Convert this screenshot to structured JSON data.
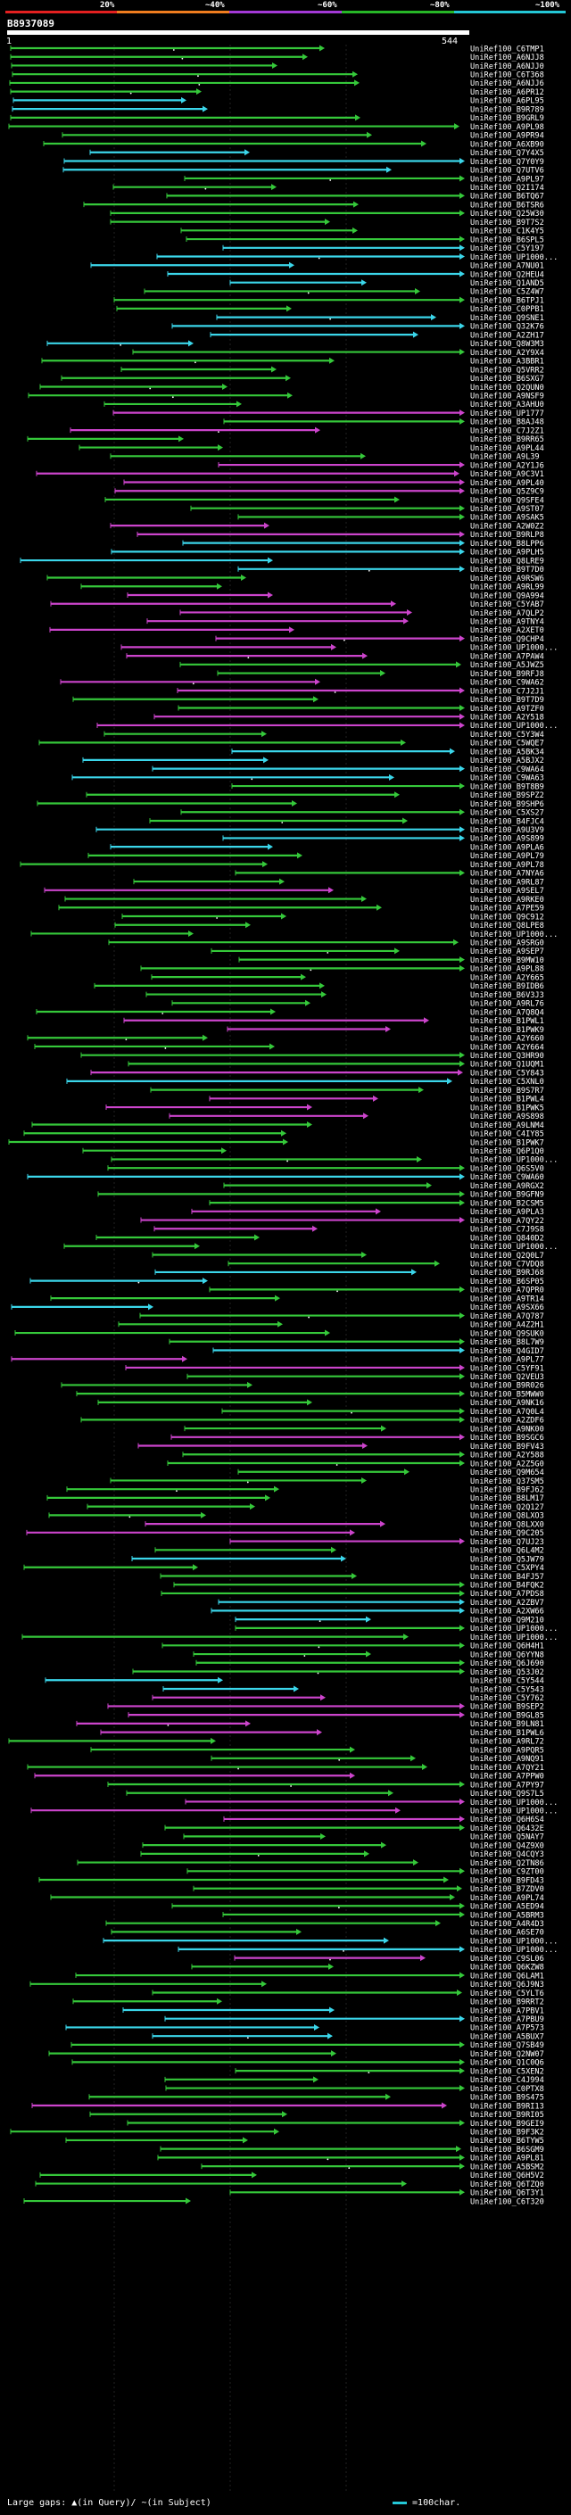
{
  "colors": {
    "red": "#e32020",
    "orange": "#f07d1f",
    "purple": "#a339d6",
    "green": "#27b627",
    "cyan": "#24c7d6",
    "magenta": "#cc44cc",
    "bright_green": "#35c83a",
    "sky": "#3bd6ea"
  },
  "legend": {
    "labels": [
      "20%",
      "~40%",
      "~60%",
      "~80%",
      "~100%"
    ]
  },
  "query": {
    "id": "B8937089",
    "start": "1",
    "end": "544"
  },
  "hits": [
    {
      "id": "UniRef100_C6TMP1",
      "color": "green"
    },
    {
      "id": "UniRef100_A6NJJ8",
      "color": "green"
    },
    {
      "id": "UniRef100_A6NJJ0",
      "color": "green"
    },
    {
      "id": "UniRef100_C6T368",
      "color": "green"
    },
    {
      "id": "UniRef100_A6NJJ6",
      "color": "green"
    },
    {
      "id": "UniRef100_A6PR12",
      "color": "green"
    },
    {
      "id": "UniRef100_A6PL95",
      "color": "cyan"
    },
    {
      "id": "UniRef100_B9R789",
      "color": "cyan"
    },
    {
      "id": "UniRef100_B9GRL9",
      "color": "green"
    },
    {
      "id": "UniRef100_A9PL98",
      "color": "green"
    },
    {
      "id": "UniRef100_A9PR94",
      "color": "green"
    },
    {
      "id": "UniRef100_A6XB90",
      "color": "green"
    },
    {
      "id": "UniRef100_Q7Y4X5",
      "color": "cyan"
    },
    {
      "id": "UniRef100_Q7Y0Y9",
      "color": "cyan"
    },
    {
      "id": "UniRef100_Q7UTV6",
      "color": "cyan"
    },
    {
      "id": "UniRef100_A9PL97",
      "color": "green"
    },
    {
      "id": "UniRef100_Q2I174",
      "color": "green"
    },
    {
      "id": "UniRef100_B6TQ67",
      "color": "green"
    },
    {
      "id": "UniRef100_B6TSR6",
      "color": "green"
    },
    {
      "id": "UniRef100_Q25W30",
      "color": "green"
    },
    {
      "id": "UniRef100_B9T7S2",
      "color": "green"
    },
    {
      "id": "UniRef100_C1K4Y5",
      "color": "green"
    },
    {
      "id": "UniRef100_B6SPL5",
      "color": "green"
    },
    {
      "id": "UniRef100_C5Y197",
      "color": "cyan"
    },
    {
      "id": "UniRef100_UP1000...",
      "color": "cyan"
    },
    {
      "id": "UniRef100_A7NU01",
      "color": "cyan"
    },
    {
      "id": "UniRef100_Q2HEU4",
      "color": "cyan"
    },
    {
      "id": "UniRef100_Q1AND5",
      "color": "cyan"
    },
    {
      "id": "UniRef100_C5Z4W7",
      "color": "green"
    },
    {
      "id": "UniRef100_B6TPJ1",
      "color": "green"
    },
    {
      "id": "UniRef100_C0PPB1",
      "color": "green"
    },
    {
      "id": "UniRef100_Q9SNE1",
      "color": "cyan"
    },
    {
      "id": "UniRef100_Q32K76",
      "color": "cyan"
    },
    {
      "id": "UniRef100_A2ZH17",
      "color": "cyan"
    },
    {
      "id": "UniRef100_Q8W3M3",
      "color": "cyan"
    },
    {
      "id": "UniRef100_A2Y9X4",
      "color": "green"
    },
    {
      "id": "UniRef100_A3BBR1",
      "color": "green"
    },
    {
      "id": "UniRef100_Q5VRR2",
      "color": "green"
    },
    {
      "id": "UniRef100_B6SXG7",
      "color": "green"
    },
    {
      "id": "UniRef100_Q2QUN0",
      "color": "green"
    },
    {
      "id": "UniRef100_A9NSF9",
      "color": "green"
    },
    {
      "id": "UniRef100_A3AHU0",
      "color": "green"
    },
    {
      "id": "UniRef100_UP1777",
      "color": "magenta"
    },
    {
      "id": "UniRef100_B8AJ48",
      "color": "green"
    },
    {
      "id": "UniRef100_C7J2Z1",
      "color": "magenta"
    },
    {
      "id": "UniRef100_B9RR65",
      "color": "green"
    },
    {
      "id": "UniRef100_A9PL44",
      "color": "green"
    },
    {
      "id": "UniRef100_A9L39",
      "color": "green"
    },
    {
      "id": "UniRef100_A2Y1J6",
      "color": "magenta"
    },
    {
      "id": "UniRef100_A9C3V1",
      "color": "magenta"
    },
    {
      "id": "UniRef100_A9PL40",
      "color": "magenta"
    },
    {
      "id": "UniRef100_Q5Z9C9",
      "color": "magenta"
    },
    {
      "id": "UniRef100_Q9SFE4",
      "color": "green"
    },
    {
      "id": "UniRef100_A9ST07",
      "color": "green"
    },
    {
      "id": "UniRef100_A9SAK5",
      "color": "green"
    },
    {
      "id": "UniRef100_A2W0Z2",
      "color": "magenta"
    },
    {
      "id": "UniRef100_B9RLP8",
      "color": "magenta"
    },
    {
      "id": "UniRef100_B8LPP6",
      "color": "cyan"
    },
    {
      "id": "UniRef100_A9PLH5",
      "color": "cyan"
    },
    {
      "id": "UniRef100_Q8LRE9",
      "color": "cyan"
    },
    {
      "id": "UniRef100_B9T7D0",
      "color": "cyan"
    },
    {
      "id": "UniRef100_A9RSW6",
      "color": "green"
    },
    {
      "id": "UniRef100_A9RL99",
      "color": "green"
    },
    {
      "id": "UniRef100_Q9A994",
      "color": "magenta"
    },
    {
      "id": "UniRef100_C5YAB7",
      "color": "magenta"
    },
    {
      "id": "UniRef100_A7QLP2",
      "color": "magenta"
    },
    {
      "id": "UniRef100_A9TNY4",
      "color": "magenta"
    },
    {
      "id": "UniRef100_A2XET0",
      "color": "magenta"
    },
    {
      "id": "UniRef100_Q9CHP4",
      "color": "magenta"
    },
    {
      "id": "UniRef100_UP1000...",
      "color": "magenta"
    },
    {
      "id": "UniRef100_A7PAW4",
      "color": "magenta"
    },
    {
      "id": "UniRef100_A5JWZ5",
      "color": "green"
    },
    {
      "id": "UniRef100_B9RFJ8",
      "color": "green"
    },
    {
      "id": "UniRef100_C9WA62",
      "color": "magenta"
    },
    {
      "id": "UniRef100_C7J2J1",
      "color": "magenta"
    },
    {
      "id": "UniRef100_B9T7D9",
      "color": "green"
    },
    {
      "id": "UniRef100_A9TZF0",
      "color": "green"
    },
    {
      "id": "UniRef100_A2Y518",
      "color": "magenta"
    },
    {
      "id": "UniRef100_UP1000...",
      "color": "magenta"
    },
    {
      "id": "UniRef100_C5Y3W4",
      "color": "green"
    },
    {
      "id": "UniRef100_C5WQE7",
      "color": "green"
    },
    {
      "id": "UniRef100_A5BK34",
      "color": "cyan"
    },
    {
      "id": "UniRef100_A5BJX2",
      "color": "cyan"
    },
    {
      "id": "UniRef100_C9WA64",
      "color": "cyan"
    },
    {
      "id": "UniRef100_C9WA63",
      "color": "cyan"
    },
    {
      "id": "UniRef100_B9T8B9",
      "color": "green"
    },
    {
      "id": "UniRef100_B9SPZ2",
      "color": "green"
    },
    {
      "id": "UniRef100_B9SHP6",
      "color": "green"
    },
    {
      "id": "UniRef100_C5XS27",
      "color": "green"
    },
    {
      "id": "UniRef100_B4FJC4",
      "color": "green"
    },
    {
      "id": "UniRef100_A9U3V9",
      "color": "cyan"
    },
    {
      "id": "UniRef100_A9S899",
      "color": "cyan"
    },
    {
      "id": "UniRef100_A9PLA6",
      "color": "cyan"
    },
    {
      "id": "UniRef100_A9PL79",
      "color": "green"
    },
    {
      "id": "UniRef100_A9PL78",
      "color": "green"
    },
    {
      "id": "UniRef100_A7NYA6",
      "color": "green"
    },
    {
      "id": "UniRef100_A9RL87",
      "color": "green"
    },
    {
      "id": "UniRef100_A9SEL7",
      "color": "magenta"
    },
    {
      "id": "UniRef100_A9RKE0",
      "color": "green"
    },
    {
      "id": "UniRef100_A7PE59",
      "color": "green"
    },
    {
      "id": "UniRef100_Q9C912",
      "color": "green"
    },
    {
      "id": "UniRef100_Q8LPE8",
      "color": "green"
    },
    {
      "id": "UniRef100_UP1000...",
      "color": "green"
    },
    {
      "id": "UniRef100_A9SRG0",
      "color": "green"
    },
    {
      "id": "UniRef100_A9SEP7",
      "color": "green"
    },
    {
      "id": "UniRef100_B9MW10",
      "color": "green"
    },
    {
      "id": "UniRef100_A9PL88",
      "color": "green"
    },
    {
      "id": "UniRef100_A2Y665",
      "color": "green"
    },
    {
      "id": "UniRef100_B9IDB6",
      "color": "green"
    },
    {
      "id": "UniRef100_B6V3J3",
      "color": "green"
    },
    {
      "id": "UniRef100_A9RL76",
      "color": "green"
    },
    {
      "id": "UniRef100_A7Q8Q4",
      "color": "green"
    },
    {
      "id": "UniRef100_B1PWL1",
      "color": "magenta"
    },
    {
      "id": "UniRef100_B1PWK9",
      "color": "magenta"
    },
    {
      "id": "UniRef100_A2Y660",
      "color": "green"
    },
    {
      "id": "UniRef100_A2Y664",
      "color": "green"
    },
    {
      "id": "UniRef100_Q3HR90",
      "color": "green"
    },
    {
      "id": "UniRef100_Q1UQM1",
      "color": "green"
    },
    {
      "id": "UniRef100_C5Y843",
      "color": "magenta"
    },
    {
      "id": "UniRef100_C5XNL0",
      "color": "cyan"
    },
    {
      "id": "UniRef100_B9S7R7",
      "color": "green"
    },
    {
      "id": "UniRef100_B1PWL4",
      "color": "magenta"
    },
    {
      "id": "UniRef100_B1PWK5",
      "color": "magenta"
    },
    {
      "id": "UniRef100_A9S898",
      "color": "magenta"
    },
    {
      "id": "UniRef100_A9LNM4",
      "color": "green"
    },
    {
      "id": "UniRef100_C4IY85",
      "color": "green"
    },
    {
      "id": "UniRef100_B1PWK7",
      "color": "green"
    },
    {
      "id": "UniRef100_Q6P1Q0",
      "color": "green"
    },
    {
      "id": "UniRef100_UP1000...",
      "color": "green"
    },
    {
      "id": "UniRef100_Q6S5V0",
      "color": "green"
    },
    {
      "id": "UniRef100_C9WA60",
      "color": "cyan"
    },
    {
      "id": "UniRef100_A9RGX2",
      "color": "green"
    },
    {
      "id": "UniRef100_B9GFN9",
      "color": "green"
    },
    {
      "id": "UniRef100_B2CSM5",
      "color": "green"
    },
    {
      "id": "UniRef100_A9PLA3",
      "color": "magenta"
    },
    {
      "id": "UniRef100_A7QY22",
      "color": "magenta"
    },
    {
      "id": "UniRef100_C7J9S8",
      "color": "magenta"
    },
    {
      "id": "UniRef100_Q840D2",
      "color": "green"
    },
    {
      "id": "UniRef100_UP1000...",
      "color": "green"
    },
    {
      "id": "UniRef100_Q2Q0L7",
      "color": "green"
    },
    {
      "id": "UniRef100_C7VDQ8",
      "color": "green"
    },
    {
      "id": "UniRef100_B9RJ68",
      "color": "cyan"
    },
    {
      "id": "UniRef100_B6SP05",
      "color": "cyan"
    },
    {
      "id": "UniRef100_A7QPR0",
      "color": "green"
    },
    {
      "id": "UniRef100_A9TR14",
      "color": "green"
    },
    {
      "id": "UniRef100_A9SX66",
      "color": "cyan"
    },
    {
      "id": "UniRef100_A7Q787",
      "color": "green"
    },
    {
      "id": "UniRef100_A4Z2H1",
      "color": "green"
    },
    {
      "id": "UniRef100_Q9SUK0",
      "color": "green"
    },
    {
      "id": "UniRef100_B8L7W9",
      "color": "green"
    },
    {
      "id": "UniRef100_Q4GID7",
      "color": "cyan"
    },
    {
      "id": "UniRef100_A9PL77",
      "color": "magenta"
    },
    {
      "id": "UniRef100_C5YF91",
      "color": "magenta"
    },
    {
      "id": "UniRef100_Q2VEU3",
      "color": "green"
    },
    {
      "id": "UniRef100_B9R026",
      "color": "green"
    },
    {
      "id": "UniRef100_B5MWW0",
      "color": "green"
    },
    {
      "id": "UniRef100_A9NK16",
      "color": "green"
    },
    {
      "id": "UniRef100_A7Q0L4",
      "color": "green"
    },
    {
      "id": "UniRef100_A2ZDF6",
      "color": "green"
    },
    {
      "id": "UniRef100_A9NK00",
      "color": "green"
    },
    {
      "id": "UniRef100_B9SGC6",
      "color": "magenta"
    },
    {
      "id": "UniRef100_B9FV43",
      "color": "magenta"
    },
    {
      "id": "UniRef100_A2Y588",
      "color": "green"
    },
    {
      "id": "UniRef100_A2Z5G0",
      "color": "green"
    },
    {
      "id": "UniRef100_Q9M654",
      "color": "green"
    },
    {
      "id": "UniRef100_Q37SM5",
      "color": "green"
    },
    {
      "id": "UniRef100_B9FJ62",
      "color": "green"
    },
    {
      "id": "UniRef100_B8LM17",
      "color": "green"
    },
    {
      "id": "UniRef100_Q2Q127",
      "color": "green"
    },
    {
      "id": "UniRef100_Q8LXO3",
      "color": "green"
    },
    {
      "id": "UniRef100_Q8LXX0",
      "color": "magenta"
    },
    {
      "id": "UniRef100_Q9C205",
      "color": "magenta"
    },
    {
      "id": "UniRef100_Q7UJ23",
      "color": "magenta"
    },
    {
      "id": "UniRef100_Q6L4M2",
      "color": "green"
    },
    {
      "id": "UniRef100_Q5JW79",
      "color": "cyan"
    },
    {
      "id": "UniRef100_C5XPY4",
      "color": "green"
    },
    {
      "id": "UniRef100_B4FJ57",
      "color": "green"
    },
    {
      "id": "UniRef100_B4FQK2",
      "color": "green"
    },
    {
      "id": "UniRef100_A7PDS8",
      "color": "green"
    },
    {
      "id": "UniRef100_A2ZBV7",
      "color": "cyan"
    },
    {
      "id": "UniRef100_A2XW66",
      "color": "cyan"
    },
    {
      "id": "UniRef100_Q9M210",
      "color": "cyan"
    },
    {
      "id": "UniRef100_UP1000...",
      "color": "green"
    },
    {
      "id": "UniRef100_UP1000...",
      "color": "green"
    },
    {
      "id": "UniRef100_Q6H4H1",
      "color": "green"
    },
    {
      "id": "UniRef100_Q6YYN8",
      "color": "green"
    },
    {
      "id": "UniRef100_Q6J690",
      "color": "green"
    },
    {
      "id": "UniRef100_Q53J02",
      "color": "green"
    },
    {
      "id": "UniRef100_C5Y544",
      "color": "cyan"
    },
    {
      "id": "UniRef100_C5Y543",
      "color": "cyan"
    },
    {
      "id": "UniRef100_C5Y762",
      "color": "magenta"
    },
    {
      "id": "UniRef100_B9SEP2",
      "color": "magenta"
    },
    {
      "id": "UniRef100_B9GL85",
      "color": "magenta"
    },
    {
      "id": "UniRef100_B9LN81",
      "color": "magenta"
    },
    {
      "id": "UniRef100_B1PWL6",
      "color": "magenta"
    },
    {
      "id": "UniRef100_A9RL72",
      "color": "green"
    },
    {
      "id": "UniRef100_A9PQR5",
      "color": "green"
    },
    {
      "id": "UniRef100_A9NQ91",
      "color": "green"
    },
    {
      "id": "UniRef100_A7QY21",
      "color": "green"
    },
    {
      "id": "UniRef100_A7PPW0",
      "color": "magenta"
    },
    {
      "id": "UniRef100_A7PY97",
      "color": "green"
    },
    {
      "id": "UniRef100_Q9S7L5",
      "color": "green"
    },
    {
      "id": "UniRef100_UP1000...",
      "color": "magenta"
    },
    {
      "id": "UniRef100_UP1000...",
      "color": "magenta"
    },
    {
      "id": "UniRef100_Q6H6S4",
      "color": "magenta"
    },
    {
      "id": "UniRef100_Q6432E",
      "color": "green"
    },
    {
      "id": "UniRef100_Q5NAY7",
      "color": "green"
    },
    {
      "id": "UniRef100_Q4Z9X0",
      "color": "green"
    },
    {
      "id": "UniRef100_Q4CQY3",
      "color": "green"
    },
    {
      "id": "UniRef100_Q2TN86",
      "color": "green"
    },
    {
      "id": "UniRef100_C9ZT00",
      "color": "green"
    },
    {
      "id": "UniRef100_B9FD43",
      "color": "green"
    },
    {
      "id": "UniRef100_B7ZDV0",
      "color": "green"
    },
    {
      "id": "UniRef100_A9PL74",
      "color": "green"
    },
    {
      "id": "UniRef100_A5ED94",
      "color": "green"
    },
    {
      "id": "UniRef100_A5BRM3",
      "color": "green"
    },
    {
      "id": "UniRef100_A4R4D3",
      "color": "green"
    },
    {
      "id": "UniRef100_A6SE70",
      "color": "green"
    },
    {
      "id": "UniRef100_UP1000...",
      "color": "cyan"
    },
    {
      "id": "UniRef100_UP1000...",
      "color": "cyan"
    },
    {
      "id": "UniRef100_C9SL06",
      "color": "magenta"
    },
    {
      "id": "UniRef100_Q6KZW8",
      "color": "green"
    },
    {
      "id": "UniRef100_Q6LAM1",
      "color": "green"
    },
    {
      "id": "UniRef100_Q6J9N3",
      "color": "green"
    },
    {
      "id": "UniRef100_C5YLT6",
      "color": "green"
    },
    {
      "id": "UniRef100_B9RRT2",
      "color": "green"
    },
    {
      "id": "UniRef100_A7PBV1",
      "color": "cyan"
    },
    {
      "id": "UniRef100_A7PBU9",
      "color": "cyan"
    },
    {
      "id": "UniRef100_A7P573",
      "color": "cyan"
    },
    {
      "id": "UniRef100_A5BUX7",
      "color": "cyan"
    },
    {
      "id": "UniRef100_Q7SB49",
      "color": "green"
    },
    {
      "id": "UniRef100_Q2NW07",
      "color": "green"
    },
    {
      "id": "UniRef100_Q1C0Q6",
      "color": "green"
    },
    {
      "id": "UniRef100_C5XEN2",
      "color": "green"
    },
    {
      "id": "UniRef100_C4J994",
      "color": "green"
    },
    {
      "id": "UniRef100_C0PTX8",
      "color": "green"
    },
    {
      "id": "UniRef100_B9S475",
      "color": "green"
    },
    {
      "id": "UniRef100_B9RI13",
      "color": "magenta"
    },
    {
      "id": "UniRef100_B9RI05",
      "color": "green"
    },
    {
      "id": "UniRef100_B9GEI9",
      "color": "green"
    },
    {
      "id": "UniRef100_B9F3K2",
      "color": "green"
    },
    {
      "id": "UniRef100_B6TYW5",
      "color": "green"
    },
    {
      "id": "UniRef100_B6SGM9",
      "color": "green"
    },
    {
      "id": "UniRef100_A9PL81",
      "color": "green"
    },
    {
      "id": "UniRef100_A5BSM2",
      "color": "green"
    },
    {
      "id": "UniRef100_Q6H5V2",
      "color": "green"
    },
    {
      "id": "UniRef100_Q6TZQ0",
      "color": "green"
    },
    {
      "id": "UniRef100_Q6T3Y1",
      "color": "green"
    },
    {
      "id": "UniRef100_C6T320",
      "color": "green"
    }
  ],
  "footer": {
    "left": "Large gaps: ▲(in Query)/ ~(in Subject)",
    "right": "=100char."
  }
}
